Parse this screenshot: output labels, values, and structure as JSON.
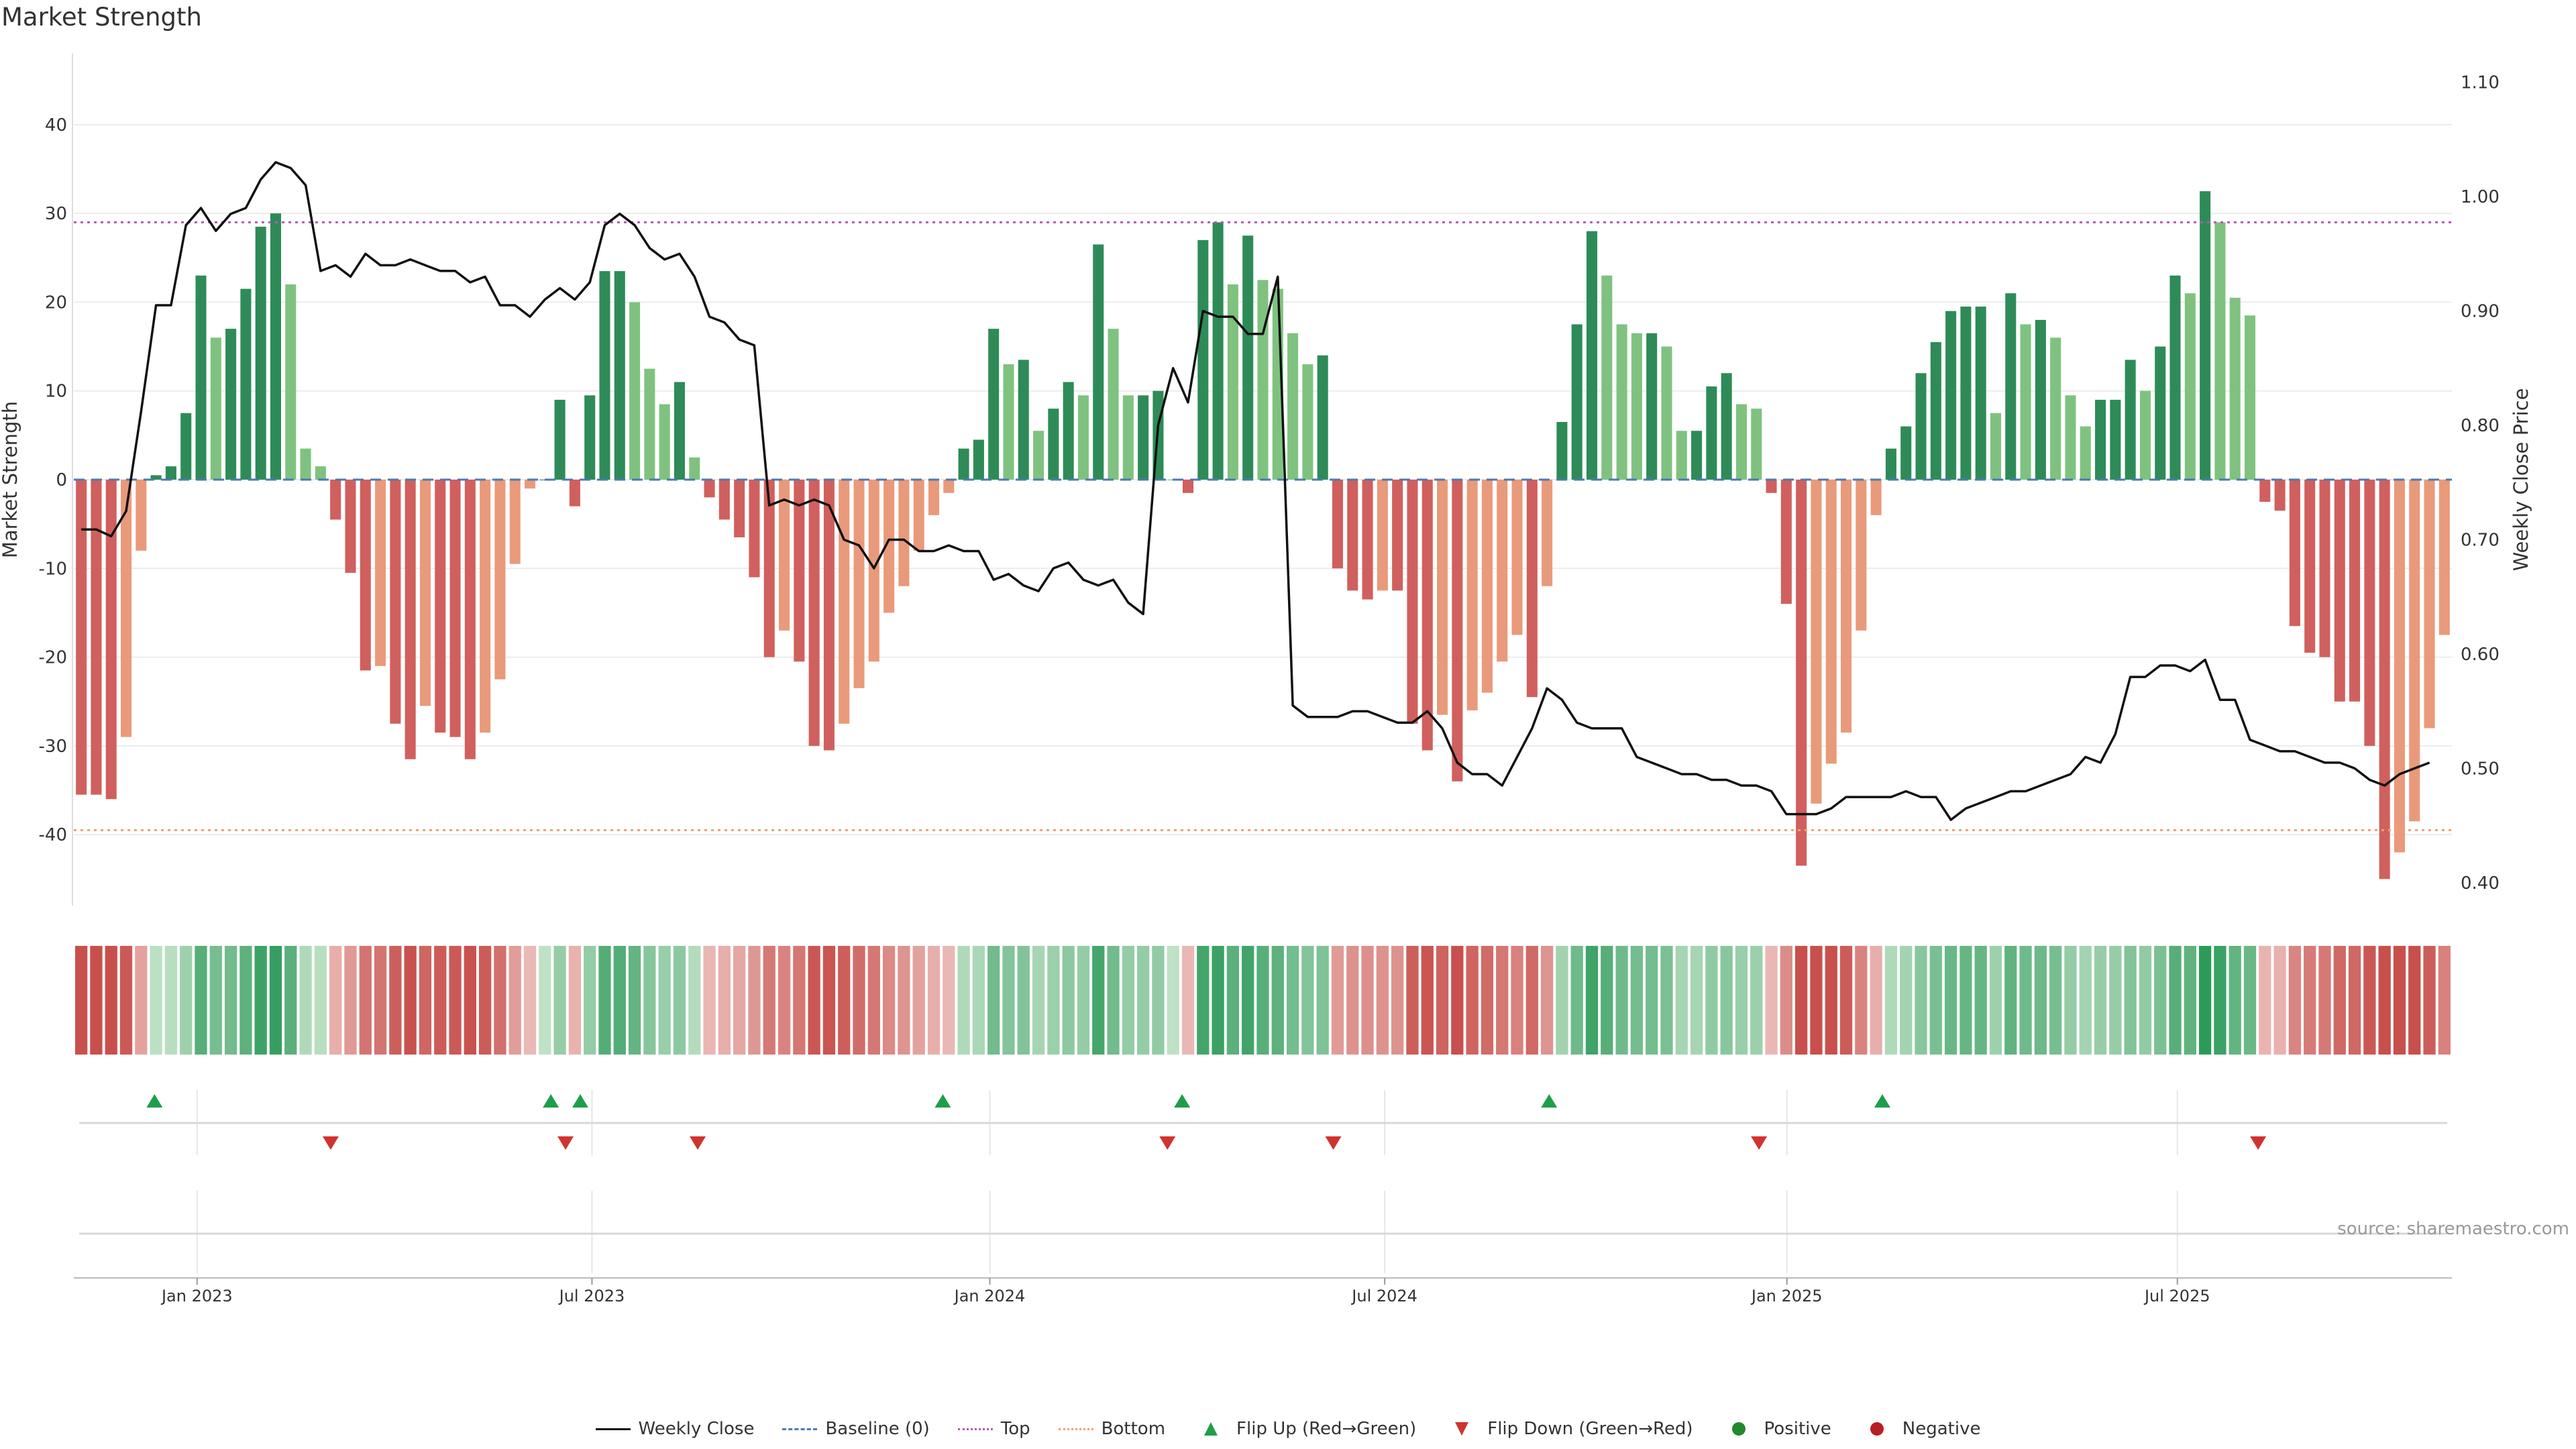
{
  "title": "Market Strength",
  "source": "source: sharemaestro.com",
  "colors": {
    "weekly_close": "#111111",
    "baseline": "#4a7ab5",
    "top": "#b15bb2",
    "bottom": "#f0a070",
    "flip_up": "#1f9e4a",
    "flip_down": "#d0332f",
    "positive": "#1f8a2e",
    "negative": "#b81f24",
    "bar_pos_strong": "#2e8b57",
    "bar_pos_weak": "#7fc27f",
    "bar_neg_strong": "#d0605d",
    "bar_neg_weak": "#e99a7b"
  },
  "legend": [
    {
      "key": "weekly_close",
      "label": "Weekly Close",
      "symbol": "line-solid"
    },
    {
      "key": "baseline",
      "label": "Baseline (0)",
      "symbol": "line-dashed"
    },
    {
      "key": "top",
      "label": "Top",
      "symbol": "line-dotted"
    },
    {
      "key": "bottom",
      "label": "Bottom",
      "symbol": "line-dotted"
    },
    {
      "key": "flip_up",
      "label": "Flip Up (Red→Green)",
      "symbol": "triangle-up"
    },
    {
      "key": "flip_down",
      "label": "Flip Down (Green→Red)",
      "symbol": "triangle-down"
    },
    {
      "key": "positive",
      "label": "Positive",
      "symbol": "dot"
    },
    {
      "key": "negative",
      "label": "Negative",
      "symbol": "dot"
    }
  ],
  "chart_data": {
    "type": "bar",
    "title": "Market Strength",
    "ylabel": "Market Strength",
    "y2label": "Weekly Close Price",
    "ylim": [
      -48,
      48
    ],
    "y2lim": [
      0.38,
      1.125
    ],
    "yticks": [
      -40,
      -30,
      -20,
      -10,
      0,
      10,
      20,
      30,
      40
    ],
    "y2ticks": [
      "0.40",
      "0.50",
      "0.60",
      "0.70",
      "0.80",
      "0.90",
      "1.00",
      "1.10"
    ],
    "top_level": 29,
    "bottom_level": -39.5,
    "x_start_week": 0,
    "x_end_week": 162,
    "x_ticks": [
      {
        "label": "Jan 2023",
        "week": 8.4
      },
      {
        "label": "Jul 2023",
        "week": 35.3
      },
      {
        "label": "Jan 2024",
        "week": 62.4
      },
      {
        "label": "Jul 2024",
        "week": 89.3
      },
      {
        "label": "Jan 2025",
        "week": 116.7
      },
      {
        "label": "Jul 2025",
        "week": 143.3
      }
    ],
    "strength": [
      -35.5,
      -35.5,
      -36,
      -29,
      -8,
      0.5,
      1.5,
      7.5,
      23,
      16,
      17,
      21.5,
      28.5,
      30,
      22,
      3.5,
      1.5,
      -4.5,
      -10.5,
      -21.5,
      -21,
      -27.5,
      -31.5,
      -25.5,
      -28.5,
      -29,
      -31.5,
      -28.5,
      -22.5,
      -9.5,
      -1,
      0,
      9,
      -3,
      9.5,
      23.5,
      23.5,
      20,
      12.5,
      8.5,
      11,
      2.5,
      -2,
      -4.5,
      -6.5,
      -11,
      -20,
      -17,
      -20.5,
      -30,
      -30.5,
      -27.5,
      -23.5,
      -20.5,
      -15,
      -12,
      -8,
      -4,
      -1.5,
      3.5,
      4.5,
      17,
      13,
      13.5,
      5.5,
      8,
      11,
      9.5,
      26.5,
      17,
      9.5,
      9.5,
      10,
      0,
      -1.5,
      27,
      29,
      22,
      27.5,
      22.5,
      21.5,
      16.5,
      13,
      14,
      -10,
      -12.5,
      -13.5,
      -12.5,
      -12.5,
      -27.5,
      -30.5,
      -26.5,
      -34,
      -26,
      -24,
      -20.5,
      -17.5,
      -24.5,
      -12,
      6.5,
      17.5,
      28,
      23,
      17.5,
      16.5,
      16.5,
      15,
      5.5,
      5.5,
      10.5,
      12,
      8.5,
      8,
      -1.5,
      -14,
      -43.5,
      -36.5,
      -32,
      -28.5,
      -17,
      -4,
      3.5,
      6,
      12,
      15.5,
      19,
      19.5,
      19.5,
      7.5,
      21,
      17.5,
      18,
      16,
      9.5,
      6,
      9,
      9,
      13.5,
      10,
      15,
      23,
      21,
      32.5,
      29,
      20.5,
      18.5,
      -2.5,
      -3.5,
      -16.5,
      -19.5,
      -20,
      -25,
      -25,
      -30,
      -45,
      -42,
      -38.5,
      -28,
      -17.5
    ],
    "close": [
      0.709,
      0.709,
      0.703,
      0.725,
      0.812,
      0.905,
      0.905,
      0.975,
      0.99,
      0.97,
      0.985,
      0.99,
      1.015,
      1.03,
      1.025,
      1.01,
      0.935,
      0.94,
      0.93,
      0.95,
      0.94,
      0.94,
      0.945,
      0.94,
      0.935,
      0.935,
      0.925,
      0.93,
      0.905,
      0.905,
      0.895,
      0.91,
      0.92,
      0.91,
      0.925,
      0.975,
      0.985,
      0.975,
      0.955,
      0.945,
      0.95,
      0.93,
      0.895,
      0.89,
      0.875,
      0.87,
      0.73,
      0.735,
      0.73,
      0.735,
      0.73,
      0.7,
      0.695,
      0.675,
      0.7,
      0.7,
      0.69,
      0.69,
      0.695,
      0.69,
      0.69,
      0.665,
      0.67,
      0.66,
      0.655,
      0.675,
      0.68,
      0.665,
      0.66,
      0.665,
      0.645,
      0.635,
      0.8,
      0.85,
      0.82,
      0.9,
      0.895,
      0.895,
      0.88,
      0.88,
      0.93,
      0.555,
      0.545,
      0.545,
      0.545,
      0.55,
      0.55,
      0.545,
      0.54,
      0.54,
      0.55,
      0.535,
      0.505,
      0.495,
      0.495,
      0.485,
      0.51,
      0.535,
      0.57,
      0.56,
      0.54,
      0.535,
      0.535,
      0.535,
      0.51,
      0.505,
      0.5,
      0.495,
      0.495,
      0.49,
      0.49,
      0.485,
      0.485,
      0.48,
      0.46,
      0.46,
      0.46,
      0.465,
      0.475,
      0.475,
      0.475,
      0.475,
      0.48,
      0.475,
      0.475,
      0.455,
      0.465,
      0.47,
      0.475,
      0.48,
      0.48,
      0.485,
      0.49,
      0.495,
      0.51,
      0.505,
      0.53,
      0.58,
      0.58,
      0.59,
      0.59,
      0.585,
      0.595,
      0.56,
      0.56,
      0.525,
      0.52,
      0.515,
      0.515,
      0.51,
      0.505,
      0.505,
      0.5,
      0.49,
      0.485,
      0.495,
      0.5,
      0.505
    ],
    "flips": [
      {
        "type": "up",
        "week": 5.5
      },
      {
        "type": "down",
        "week": 17.5
      },
      {
        "type": "up",
        "week": 32.5
      },
      {
        "type": "down",
        "week": 33.5
      },
      {
        "type": "up",
        "week": 34.5
      },
      {
        "type": "down",
        "week": 42.5
      },
      {
        "type": "up",
        "week": 59.2
      },
      {
        "type": "down",
        "week": 74.5
      },
      {
        "type": "up",
        "week": 75.5
      },
      {
        "type": "down",
        "week": 85.8
      },
      {
        "type": "up",
        "week": 100.5
      },
      {
        "type": "down",
        "week": 114.8
      },
      {
        "type": "up",
        "week": 123.2
      },
      {
        "type": "down",
        "week": 148.8
      }
    ]
  }
}
